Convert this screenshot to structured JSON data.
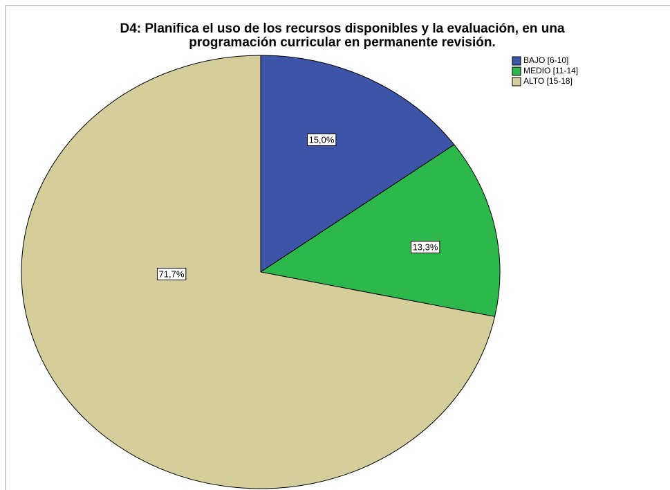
{
  "chart_data": {
    "type": "pie",
    "title": [
      "D4: Planifica el uso de los recursos disponibles y la evaluación, en una",
      "programación curricular en permanente revisión."
    ],
    "categories": [
      "BAJO [6-10]",
      "MEDIO [11-14]",
      "ALTO [15-18]"
    ],
    "values": [
      15.0,
      13.3,
      71.7
    ],
    "value_labels": [
      "15,0%",
      "13,3%",
      "71,7%"
    ],
    "colors": [
      "#3c55a9",
      "#2db84b",
      "#d5cd9a"
    ],
    "legend": "upper right"
  }
}
